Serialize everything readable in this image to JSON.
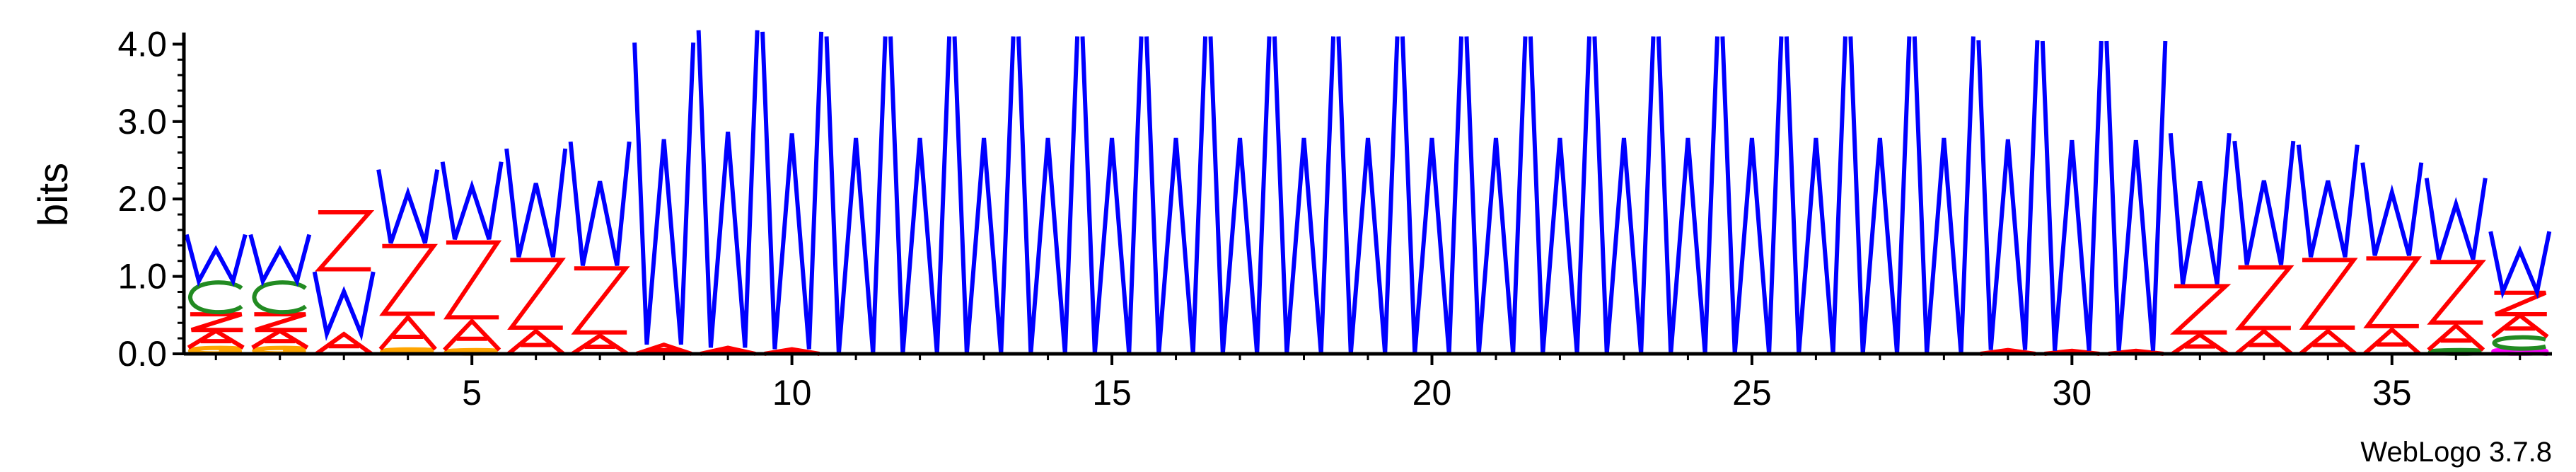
{
  "chart_data": {
    "type": "sequence-logo",
    "ylabel": "bits",
    "ylim": [
      0,
      4.15
    ],
    "y_ticks": [
      "0.0",
      "1.0",
      "2.0",
      "3.0",
      "4.0"
    ],
    "x_ticks": [
      "5",
      "10",
      "15",
      "20",
      "25",
      "30",
      "35"
    ],
    "x_tick_positions": [
      5,
      10,
      15,
      20,
      25,
      30,
      35
    ],
    "n_positions": 37,
    "footer": "WebLogo 3.7.8",
    "letter_colors": {
      "W": "#0000ff",
      "Z": "#ff0000",
      "A": "#ff0000",
      "C": "#228b22",
      "G": "#ffa500",
      "T": "#228b22",
      "D": "#ff0000",
      "E": "#ff0000",
      "S": "#228b22",
      "Q": "#ff00ff"
    },
    "stacks": [
      {
        "position": 1,
        "letters": [
          {
            "l": "G",
            "h": 0.08
          },
          {
            "l": "A",
            "h": 0.22
          },
          {
            "l": "Z",
            "h": 0.22
          },
          {
            "l": "C",
            "h": 0.42
          },
          {
            "l": "W",
            "h": 0.6
          }
        ]
      },
      {
        "position": 2,
        "letters": [
          {
            "l": "G",
            "h": 0.08
          },
          {
            "l": "A",
            "h": 0.22
          },
          {
            "l": "Z",
            "h": 0.22
          },
          {
            "l": "C",
            "h": 0.42
          },
          {
            "l": "W",
            "h": 0.6
          }
        ]
      },
      {
        "position": 3,
        "letters": [
          {
            "l": "A",
            "h": 0.26
          },
          {
            "l": "W",
            "h": 0.8
          },
          {
            "l": "Z",
            "h": 0.8
          }
        ]
      },
      {
        "position": 4,
        "letters": [
          {
            "l": "G",
            "h": 0.06
          },
          {
            "l": "A",
            "h": 0.42
          },
          {
            "l": "Z",
            "h": 0.95
          },
          {
            "l": "W",
            "h": 0.95
          }
        ]
      },
      {
        "position": 5,
        "letters": [
          {
            "l": "G",
            "h": 0.05
          },
          {
            "l": "A",
            "h": 0.38
          },
          {
            "l": "Z",
            "h": 1.05
          },
          {
            "l": "W",
            "h": 1.0
          }
        ]
      },
      {
        "position": 6,
        "letters": [
          {
            "l": "A",
            "h": 0.3
          },
          {
            "l": "Z",
            "h": 0.95
          },
          {
            "l": "W",
            "h": 1.4
          }
        ]
      },
      {
        "position": 7,
        "letters": [
          {
            "l": "A",
            "h": 0.24
          },
          {
            "l": "Z",
            "h": 0.9
          },
          {
            "l": "W",
            "h": 1.6
          }
        ]
      },
      {
        "position": 8,
        "letters": [
          {
            "l": "A",
            "h": 0.12
          },
          {
            "l": "W",
            "h": 3.9
          }
        ]
      },
      {
        "position": 9,
        "letters": [
          {
            "l": "A",
            "h": 0.08
          },
          {
            "l": "W",
            "h": 4.1
          }
        ]
      },
      {
        "position": 10,
        "letters": [
          {
            "l": "A",
            "h": 0.06
          },
          {
            "l": "W",
            "h": 4.1
          }
        ]
      },
      {
        "position": 11,
        "letters": [
          {
            "l": "W",
            "h": 4.1
          }
        ]
      },
      {
        "position": 12,
        "letters": [
          {
            "l": "W",
            "h": 4.1
          }
        ]
      },
      {
        "position": 13,
        "letters": [
          {
            "l": "W",
            "h": 4.1
          }
        ]
      },
      {
        "position": 14,
        "letters": [
          {
            "l": "W",
            "h": 4.1
          }
        ]
      },
      {
        "position": 15,
        "letters": [
          {
            "l": "W",
            "h": 4.1
          }
        ]
      },
      {
        "position": 16,
        "letters": [
          {
            "l": "W",
            "h": 4.1
          }
        ]
      },
      {
        "position": 17,
        "letters": [
          {
            "l": "W",
            "h": 4.1
          }
        ]
      },
      {
        "position": 18,
        "letters": [
          {
            "l": "W",
            "h": 4.1
          }
        ]
      },
      {
        "position": 19,
        "letters": [
          {
            "l": "W",
            "h": 4.1
          }
        ]
      },
      {
        "position": 20,
        "letters": [
          {
            "l": "W",
            "h": 4.1
          }
        ]
      },
      {
        "position": 21,
        "letters": [
          {
            "l": "W",
            "h": 4.1
          }
        ]
      },
      {
        "position": 22,
        "letters": [
          {
            "l": "W",
            "h": 4.1
          }
        ]
      },
      {
        "position": 23,
        "letters": [
          {
            "l": "W",
            "h": 4.1
          }
        ]
      },
      {
        "position": 24,
        "letters": [
          {
            "l": "W",
            "h": 4.1
          }
        ]
      },
      {
        "position": 25,
        "letters": [
          {
            "l": "W",
            "h": 4.1
          }
        ]
      },
      {
        "position": 26,
        "letters": [
          {
            "l": "W",
            "h": 4.1
          }
        ]
      },
      {
        "position": 27,
        "letters": [
          {
            "l": "W",
            "h": 4.1
          }
        ]
      },
      {
        "position": 28,
        "letters": [
          {
            "l": "W",
            "h": 4.1
          }
        ]
      },
      {
        "position": 29,
        "letters": [
          {
            "l": "A",
            "h": 0.05
          },
          {
            "l": "W",
            "h": 4.0
          }
        ]
      },
      {
        "position": 30,
        "letters": [
          {
            "l": "A",
            "h": 0.04
          },
          {
            "l": "W",
            "h": 4.0
          }
        ]
      },
      {
        "position": 31,
        "letters": [
          {
            "l": "A",
            "h": 0.04
          },
          {
            "l": "W",
            "h": 4.0
          }
        ]
      },
      {
        "position": 32,
        "letters": [
          {
            "l": "A",
            "h": 0.25
          },
          {
            "l": "Z",
            "h": 0.65
          },
          {
            "l": "W",
            "h": 1.95
          }
        ]
      },
      {
        "position": 33,
        "letters": [
          {
            "l": "A",
            "h": 0.3
          },
          {
            "l": "Z",
            "h": 0.85
          },
          {
            "l": "W",
            "h": 1.6
          }
        ]
      },
      {
        "position": 34,
        "letters": [
          {
            "l": "A",
            "h": 0.3
          },
          {
            "l": "Z",
            "h": 0.95
          },
          {
            "l": "W",
            "h": 1.45
          }
        ]
      },
      {
        "position": 35,
        "letters": [
          {
            "l": "A",
            "h": 0.32
          },
          {
            "l": "Z",
            "h": 0.95
          },
          {
            "l": "W",
            "h": 1.2
          }
        ]
      },
      {
        "position": 36,
        "letters": [
          {
            "l": "C",
            "h": 0.05
          },
          {
            "l": "A",
            "h": 0.32
          },
          {
            "l": "Z",
            "h": 0.85
          },
          {
            "l": "W",
            "h": 1.05
          }
        ]
      },
      {
        "position": 37,
        "letters": [
          {
            "l": "Q",
            "h": 0.06
          },
          {
            "l": "C",
            "h": 0.16
          },
          {
            "l": "A",
            "h": 0.28
          },
          {
            "l": "Z",
            "h": 0.3
          },
          {
            "l": "W",
            "h": 0.78
          }
        ]
      }
    ]
  }
}
